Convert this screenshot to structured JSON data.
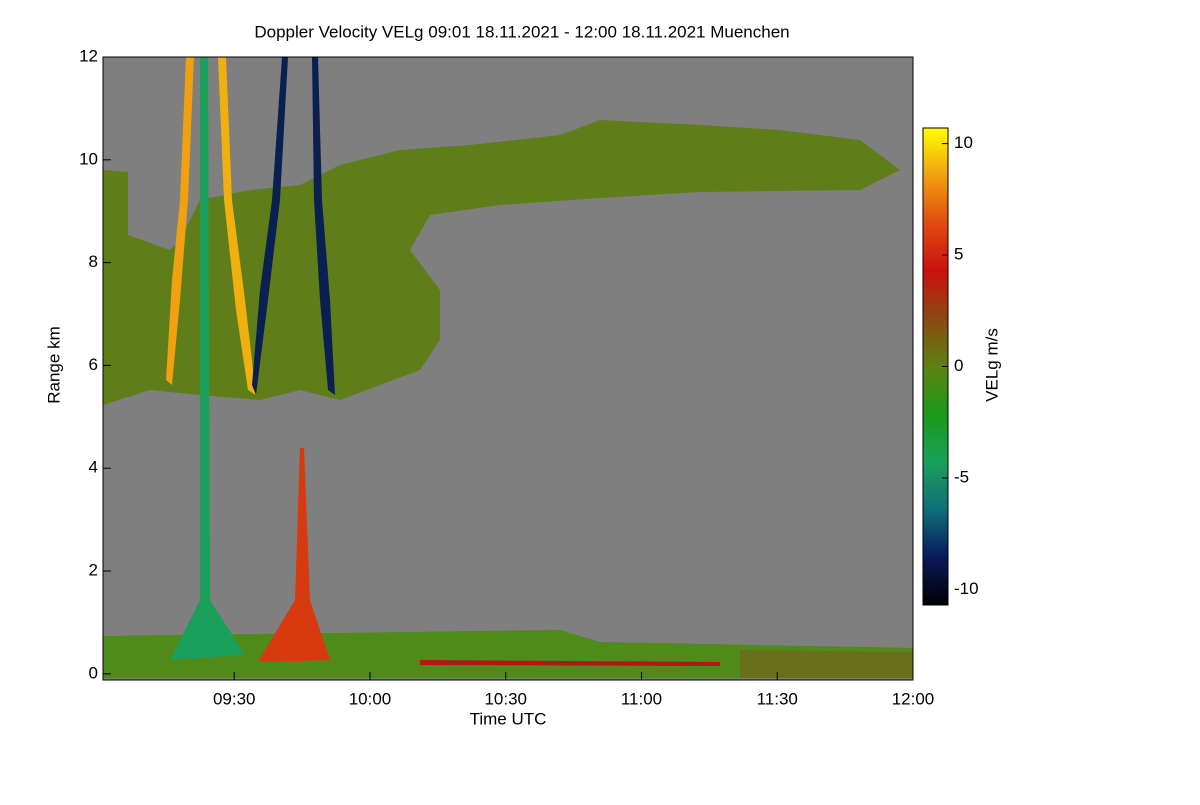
{
  "chart_data": {
    "type": "heatmap",
    "title": "Doppler Velocity VELg   09:01 18.11.2021 - 12:00 18.11.2021 Muenchen",
    "x_label": "Time UTC",
    "y_label": "Range km",
    "xlim": [
      541,
      720
    ],
    "xticks": [
      {
        "value": 570,
        "label": "09:30"
      },
      {
        "value": 600,
        "label": "10:00"
      },
      {
        "value": 630,
        "label": "10:30"
      },
      {
        "value": 660,
        "label": "11:00"
      },
      {
        "value": 690,
        "label": "11:30"
      },
      {
        "value": 720,
        "label": "12:00"
      }
    ],
    "ylim": [
      -0.12,
      12
    ],
    "yticks": [
      0,
      2,
      4,
      6,
      8,
      10,
      12
    ],
    "colorbar": {
      "label": "VELg m/s",
      "lim": [
        -10.7,
        10.7
      ],
      "ticks": [
        -10,
        -5,
        0,
        5,
        10
      ],
      "colormap": [
        "#000000",
        "#0a1a5a",
        "#0f6e7a",
        "#1aa05a",
        "#1a9a1a",
        "#5e8214",
        "#8a4a10",
        "#cc1010",
        "#e04a10",
        "#f0a010",
        "#ffff00"
      ]
    }
  }
}
